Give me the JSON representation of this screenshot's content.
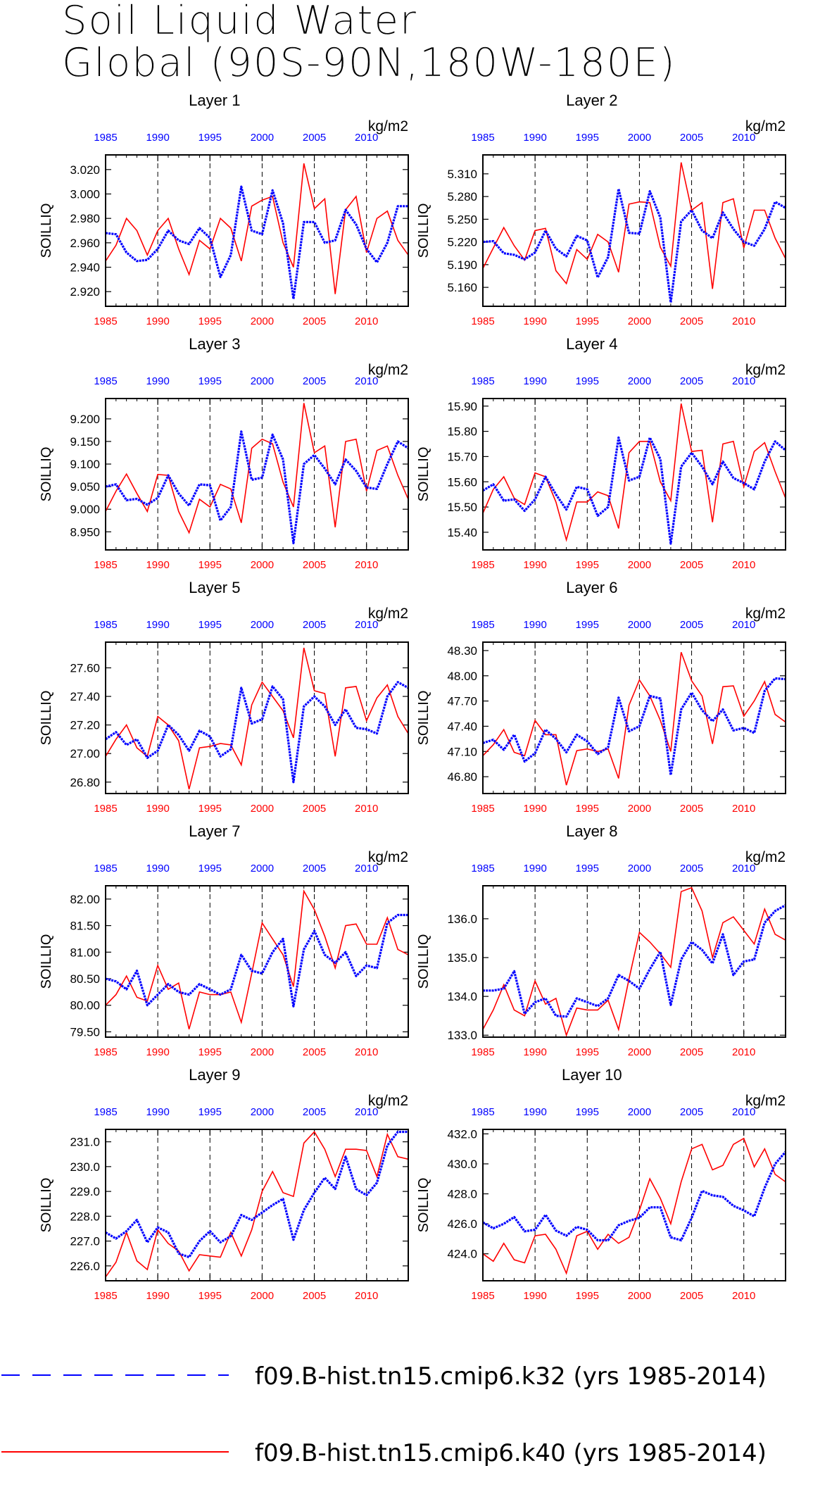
{
  "title": [
    "Soil Liquid Water",
    "Global (90S-90N,180W-180E)"
  ],
  "colors": {
    "k32": "#0000ff",
    "k40": "#ff0000",
    "axis": "#000000"
  },
  "legend": [
    {
      "label": "f09.B-hist.tn15.cmip6.k32 (yrs 1985-2014)",
      "color": "#0000ff",
      "style": "dashed"
    },
    {
      "label": "f09.B-hist.tn15.cmip6.k40 (yrs 1985-2014)",
      "color": "#ff0000",
      "style": "solid"
    }
  ],
  "chart_data": [
    {
      "type": "line",
      "title": "Layer 1",
      "ylabel": "SOILLIQ",
      "units": "kg/m2",
      "xlim": [
        1985,
        2014
      ],
      "ylim": [
        2.908,
        3.032
      ],
      "yticks": [
        2.92,
        2.94,
        2.96,
        2.98,
        3.0,
        3.02
      ],
      "ytick_labels": [
        "2.920",
        "2.940",
        "2.960",
        "2.980",
        "3.000",
        "3.020"
      ],
      "series": [
        {
          "name": "f09.B-hist.tn15.cmip6.k32 (yrs 1985-2014)",
          "values": [
            2.968,
            2.967,
            2.952,
            2.945,
            2.946,
            2.955,
            2.97,
            2.962,
            2.959,
            2.972,
            2.964,
            2.932,
            2.95,
            3.006,
            2.97,
            2.967,
            3.003,
            2.976,
            2.914,
            2.977,
            2.977,
            2.96,
            2.962,
            2.987,
            2.975,
            2.955,
            2.944,
            2.96,
            2.99,
            2.99
          ]
        },
        {
          "name": "f09.B-hist.tn15.cmip6.k40 (yrs 1985-2014)",
          "values": [
            2.945,
            2.958,
            2.98,
            2.97,
            2.95,
            2.97,
            2.98,
            2.955,
            2.934,
            2.962,
            2.955,
            2.98,
            2.972,
            2.945,
            2.99,
            2.995,
            2.998,
            2.96,
            2.94,
            3.025,
            2.988,
            2.996,
            2.918,
            2.987,
            2.998,
            2.952,
            2.98,
            2.986,
            2.962,
            2.95
          ]
        }
      ]
    },
    {
      "type": "line",
      "title": "Layer 2",
      "ylabel": "SOILLIQ",
      "units": "kg/m2",
      "xlim": [
        1985,
        2014
      ],
      "ylim": [
        5.135,
        5.335
      ],
      "yticks": [
        5.16,
        5.19,
        5.22,
        5.25,
        5.28,
        5.31
      ],
      "ytick_labels": [
        "5.160",
        "5.190",
        "5.220",
        "5.250",
        "5.280",
        "5.310"
      ],
      "series": [
        {
          "name": "f09.B-hist.tn15.cmip6.k32 (yrs 1985-2014)",
          "values": [
            5.22,
            5.221,
            5.205,
            5.203,
            5.197,
            5.206,
            5.235,
            5.211,
            5.201,
            5.228,
            5.222,
            5.173,
            5.2,
            5.29,
            5.232,
            5.231,
            5.287,
            5.252,
            5.14,
            5.247,
            5.262,
            5.235,
            5.225,
            5.259,
            5.237,
            5.22,
            5.215,
            5.237,
            5.273,
            5.265
          ]
        },
        {
          "name": "f09.B-hist.tn15.cmip6.k40 (yrs 1985-2014)",
          "values": [
            5.185,
            5.212,
            5.239,
            5.215,
            5.196,
            5.235,
            5.238,
            5.182,
            5.165,
            5.21,
            5.197,
            5.23,
            5.22,
            5.18,
            5.27,
            5.273,
            5.272,
            5.213,
            5.188,
            5.325,
            5.262,
            5.272,
            5.158,
            5.272,
            5.277,
            5.212,
            5.262,
            5.262,
            5.225,
            5.198
          ]
        }
      ]
    },
    {
      "type": "line",
      "title": "Layer 3",
      "ylabel": "SOILLIQ",
      "units": "kg/m2",
      "xlim": [
        1985,
        2014
      ],
      "ylim": [
        8.91,
        9.245
      ],
      "yticks": [
        8.95,
        9.0,
        9.05,
        9.1,
        9.15,
        9.2
      ],
      "ytick_labels": [
        "8.950",
        "9.000",
        "9.050",
        "9.100",
        "9.150",
        "9.200"
      ],
      "series": [
        {
          "name": "f09.B-hist.tn15.cmip6.k32 (yrs 1985-2014)",
          "values": [
            9.05,
            9.055,
            9.02,
            9.023,
            9.01,
            9.025,
            9.075,
            9.035,
            9.008,
            9.055,
            9.053,
            8.975,
            9.005,
            9.172,
            9.065,
            9.07,
            9.165,
            9.11,
            8.925,
            9.1,
            9.12,
            9.09,
            9.055,
            9.11,
            9.085,
            9.048,
            9.045,
            9.1,
            9.15,
            9.135
          ]
        },
        {
          "name": "f09.B-hist.tn15.cmip6.k40 (yrs 1985-2014)",
          "values": [
            8.995,
            9.04,
            9.078,
            9.035,
            8.995,
            9.077,
            9.075,
            8.995,
            8.948,
            9.022,
            9.005,
            9.055,
            9.045,
            8.97,
            9.135,
            9.155,
            9.145,
            9.06,
            9.005,
            9.235,
            9.125,
            9.14,
            8.96,
            9.15,
            9.155,
            9.04,
            9.13,
            9.14,
            9.075,
            9.022
          ]
        }
      ]
    },
    {
      "type": "line",
      "title": "Layer 4",
      "ylabel": "SOILLIQ",
      "units": "kg/m2",
      "xlim": [
        1985,
        2014
      ],
      "ylim": [
        15.33,
        15.93
      ],
      "yticks": [
        15.4,
        15.5,
        15.6,
        15.7,
        15.8,
        15.9
      ],
      "ytick_labels": [
        "15.40",
        "15.50",
        "15.60",
        "15.70",
        "15.80",
        "15.90"
      ],
      "series": [
        {
          "name": "f09.B-hist.tn15.cmip6.k32 (yrs 1985-2014)",
          "values": [
            15.565,
            15.59,
            15.525,
            15.53,
            15.485,
            15.53,
            15.62,
            15.55,
            15.49,
            15.58,
            15.57,
            15.465,
            15.5,
            15.775,
            15.605,
            15.62,
            15.775,
            15.69,
            15.355,
            15.66,
            15.715,
            15.66,
            15.59,
            15.68,
            15.615,
            15.595,
            15.57,
            15.68,
            15.76,
            15.725
          ]
        },
        {
          "name": "f09.B-hist.tn15.cmip6.k40 (yrs 1985-2014)",
          "values": [
            15.475,
            15.57,
            15.62,
            15.535,
            15.51,
            15.635,
            15.62,
            15.52,
            15.37,
            15.52,
            15.52,
            15.56,
            15.545,
            15.415,
            15.715,
            15.76,
            15.76,
            15.6,
            15.525,
            15.91,
            15.72,
            15.725,
            15.44,
            15.75,
            15.76,
            15.58,
            15.72,
            15.755,
            15.64,
            15.535
          ]
        }
      ]
    },
    {
      "type": "line",
      "title": "Layer 5",
      "ylabel": "SOILLIQ",
      "units": "kg/m2",
      "xlim": [
        1985,
        2014
      ],
      "ylim": [
        26.72,
        27.78
      ],
      "yticks": [
        26.8,
        27.0,
        27.2,
        27.4,
        27.6
      ],
      "ytick_labels": [
        "26.80",
        "27.00",
        "27.20",
        "27.40",
        "27.60"
      ],
      "series": [
        {
          "name": "f09.B-hist.tn15.cmip6.k32 (yrs 1985-2014)",
          "values": [
            27.1,
            27.15,
            27.06,
            27.1,
            26.97,
            27.02,
            27.2,
            27.13,
            27.02,
            27.16,
            27.12,
            26.98,
            27.03,
            27.46,
            27.21,
            27.24,
            27.47,
            27.38,
            26.8,
            27.33,
            27.4,
            27.33,
            27.2,
            27.31,
            27.18,
            27.17,
            27.14,
            27.4,
            27.5,
            27.46
          ]
        },
        {
          "name": "f09.B-hist.tn15.cmip6.k40 (yrs 1985-2014)",
          "values": [
            26.98,
            27.1,
            27.2,
            27.04,
            26.98,
            27.26,
            27.2,
            27.09,
            26.75,
            27.04,
            27.05,
            27.07,
            27.06,
            26.92,
            27.34,
            27.5,
            27.4,
            27.3,
            27.11,
            27.74,
            27.44,
            27.42,
            26.98,
            27.46,
            27.47,
            27.23,
            27.39,
            27.48,
            27.26,
            27.14
          ]
        }
      ]
    },
    {
      "type": "line",
      "title": "Layer 6",
      "ylabel": "SOILLIQ",
      "units": "kg/m2",
      "xlim": [
        1985,
        2014
      ],
      "ylim": [
        46.6,
        48.4
      ],
      "yticks": [
        46.8,
        47.1,
        47.4,
        47.7,
        48.0,
        48.3
      ],
      "ytick_labels": [
        "46.80",
        "47.10",
        "47.40",
        "47.70",
        "48.00",
        "48.30"
      ],
      "series": [
        {
          "name": "f09.B-hist.tn15.cmip6.k32 (yrs 1985-2014)",
          "values": [
            47.2,
            47.24,
            47.12,
            47.3,
            46.98,
            47.08,
            47.36,
            47.25,
            47.09,
            47.3,
            47.22,
            47.07,
            47.15,
            47.74,
            47.34,
            47.4,
            47.76,
            47.73,
            46.82,
            47.6,
            47.8,
            47.59,
            47.46,
            47.6,
            47.35,
            47.38,
            47.32,
            47.82,
            47.97,
            47.96
          ]
        },
        {
          "name": "f09.B-hist.tn15.cmip6.k40 (yrs 1985-2014)",
          "values": [
            47.05,
            47.18,
            47.36,
            47.09,
            47.05,
            47.47,
            47.3,
            47.3,
            46.7,
            47.11,
            47.13,
            47.1,
            47.13,
            46.78,
            47.65,
            47.95,
            47.76,
            47.47,
            47.1,
            48.28,
            47.94,
            47.76,
            47.19,
            47.87,
            47.88,
            47.52,
            47.7,
            47.93,
            47.54,
            47.45
          ]
        }
      ]
    },
    {
      "type": "line",
      "title": "Layer 7",
      "ylabel": "SOILLIQ",
      "units": "kg/m2",
      "xlim": [
        1985,
        2014
      ],
      "ylim": [
        79.4,
        82.25
      ],
      "yticks": [
        79.5,
        80.0,
        80.5,
        81.0,
        81.5,
        82.0
      ],
      "ytick_labels": [
        "79.50",
        "80.00",
        "80.50",
        "81.00",
        "81.50",
        "82.00"
      ],
      "series": [
        {
          "name": "f09.B-hist.tn15.cmip6.k32 (yrs 1985-2014)",
          "values": [
            80.5,
            80.45,
            80.3,
            80.65,
            80.0,
            80.2,
            80.4,
            80.25,
            80.2,
            80.4,
            80.3,
            80.2,
            80.3,
            80.95,
            80.65,
            80.6,
            81.0,
            81.25,
            79.98,
            81.05,
            81.4,
            80.95,
            80.8,
            81.0,
            80.55,
            80.75,
            80.7,
            81.55,
            81.7,
            81.7
          ]
        },
        {
          "name": "f09.B-hist.tn15.cmip6.k40 (yrs 1985-2014)",
          "values": [
            80.0,
            80.2,
            80.55,
            80.15,
            80.08,
            80.75,
            80.3,
            80.42,
            79.55,
            80.25,
            80.2,
            80.2,
            80.25,
            79.68,
            80.6,
            81.55,
            81.25,
            80.95,
            80.35,
            82.15,
            81.8,
            81.3,
            80.7,
            81.5,
            81.53,
            81.15,
            81.15,
            81.65,
            81.05,
            80.95
          ]
        }
      ]
    },
    {
      "type": "line",
      "title": "Layer 8",
      "ylabel": "SOILLIQ",
      "units": "kg/m2",
      "xlim": [
        1985,
        2014
      ],
      "ylim": [
        132.95,
        136.85
      ],
      "yticks": [
        133.0,
        134.0,
        135.0,
        136.0
      ],
      "ytick_labels": [
        "133.0",
        "134.0",
        "135.0",
        "136.0"
      ],
      "series": [
        {
          "name": "f09.B-hist.tn15.cmip6.k32 (yrs 1985-2014)",
          "values": [
            134.15,
            134.15,
            134.2,
            134.65,
            133.55,
            133.85,
            133.95,
            133.5,
            133.48,
            133.95,
            133.85,
            133.75,
            133.95,
            134.55,
            134.4,
            134.2,
            134.7,
            135.15,
            133.78,
            134.95,
            135.4,
            135.2,
            134.85,
            135.6,
            134.55,
            134.9,
            134.95,
            135.9,
            136.2,
            136.35
          ]
        },
        {
          "name": "f09.B-hist.tn15.cmip6.k40 (yrs 1985-2014)",
          "values": [
            133.15,
            133.65,
            134.3,
            133.65,
            133.5,
            134.4,
            133.8,
            133.95,
            133.0,
            133.7,
            133.65,
            133.65,
            133.9,
            133.15,
            134.45,
            135.65,
            135.4,
            135.1,
            134.75,
            136.7,
            136.8,
            136.2,
            135.0,
            135.9,
            136.05,
            135.7,
            135.35,
            136.25,
            135.6,
            135.45
          ]
        }
      ]
    },
    {
      "type": "line",
      "title": "Layer 9",
      "ylabel": "SOILLIQ",
      "units": "kg/m2",
      "xlim": [
        1985,
        2014
      ],
      "ylim": [
        225.4,
        231.5
      ],
      "yticks": [
        226.0,
        227.0,
        228.0,
        229.0,
        230.0,
        231.0
      ],
      "ytick_labels": [
        "226.0",
        "227.0",
        "228.0",
        "229.0",
        "230.0",
        "231.0"
      ],
      "series": [
        {
          "name": "f09.B-hist.tn15.cmip6.k32 (yrs 1985-2014)",
          "values": [
            227.35,
            227.1,
            227.4,
            227.85,
            226.95,
            227.55,
            227.35,
            226.5,
            226.35,
            227.0,
            227.4,
            226.95,
            227.2,
            228.05,
            227.85,
            228.15,
            228.45,
            228.7,
            227.05,
            228.25,
            228.95,
            229.55,
            229.1,
            230.4,
            229.1,
            228.85,
            229.35,
            230.85,
            231.4,
            231.4
          ]
        },
        {
          "name": "f09.B-hist.tn15.cmip6.k40 (yrs 1985-2014)",
          "values": [
            225.55,
            226.15,
            227.35,
            226.2,
            225.85,
            227.45,
            226.9,
            226.6,
            225.8,
            226.45,
            226.4,
            226.35,
            227.35,
            226.4,
            227.45,
            229.0,
            229.8,
            228.95,
            228.8,
            230.95,
            231.4,
            230.7,
            229.6,
            230.7,
            230.7,
            230.65,
            229.6,
            231.3,
            230.4,
            230.3
          ]
        }
      ]
    },
    {
      "type": "line",
      "title": "Layer 10",
      "ylabel": "SOILLIQ",
      "units": "kg/m2",
      "xlim": [
        1985,
        2014
      ],
      "ylim": [
        422.2,
        432.3
      ],
      "yticks": [
        424.0,
        426.0,
        428.0,
        430.0,
        432.0
      ],
      "ytick_labels": [
        "424.0",
        "426.0",
        "428.0",
        "430.0",
        "432.0"
      ],
      "series": [
        {
          "name": "f09.B-hist.tn15.cmip6.k32 (yrs 1985-2014)",
          "values": [
            426.1,
            425.7,
            426.0,
            426.45,
            425.5,
            425.6,
            426.6,
            425.55,
            425.2,
            425.8,
            425.6,
            424.9,
            424.9,
            425.9,
            426.2,
            426.4,
            427.1,
            427.1,
            425.1,
            424.9,
            426.4,
            428.2,
            427.9,
            427.8,
            427.2,
            426.9,
            426.5,
            428.4,
            430.0,
            430.8
          ]
        },
        {
          "name": "f09.B-hist.tn15.cmip6.k40 (yrs 1985-2014)",
          "values": [
            424.0,
            423.5,
            424.7,
            423.6,
            423.4,
            425.2,
            425.3,
            424.3,
            422.7,
            425.2,
            425.5,
            424.3,
            425.3,
            424.7,
            425.1,
            426.9,
            429.0,
            427.7,
            426.0,
            428.8,
            431.0,
            431.3,
            429.6,
            429.9,
            431.3,
            431.7,
            429.8,
            431.0,
            429.3,
            428.8
          ]
        }
      ]
    }
  ]
}
